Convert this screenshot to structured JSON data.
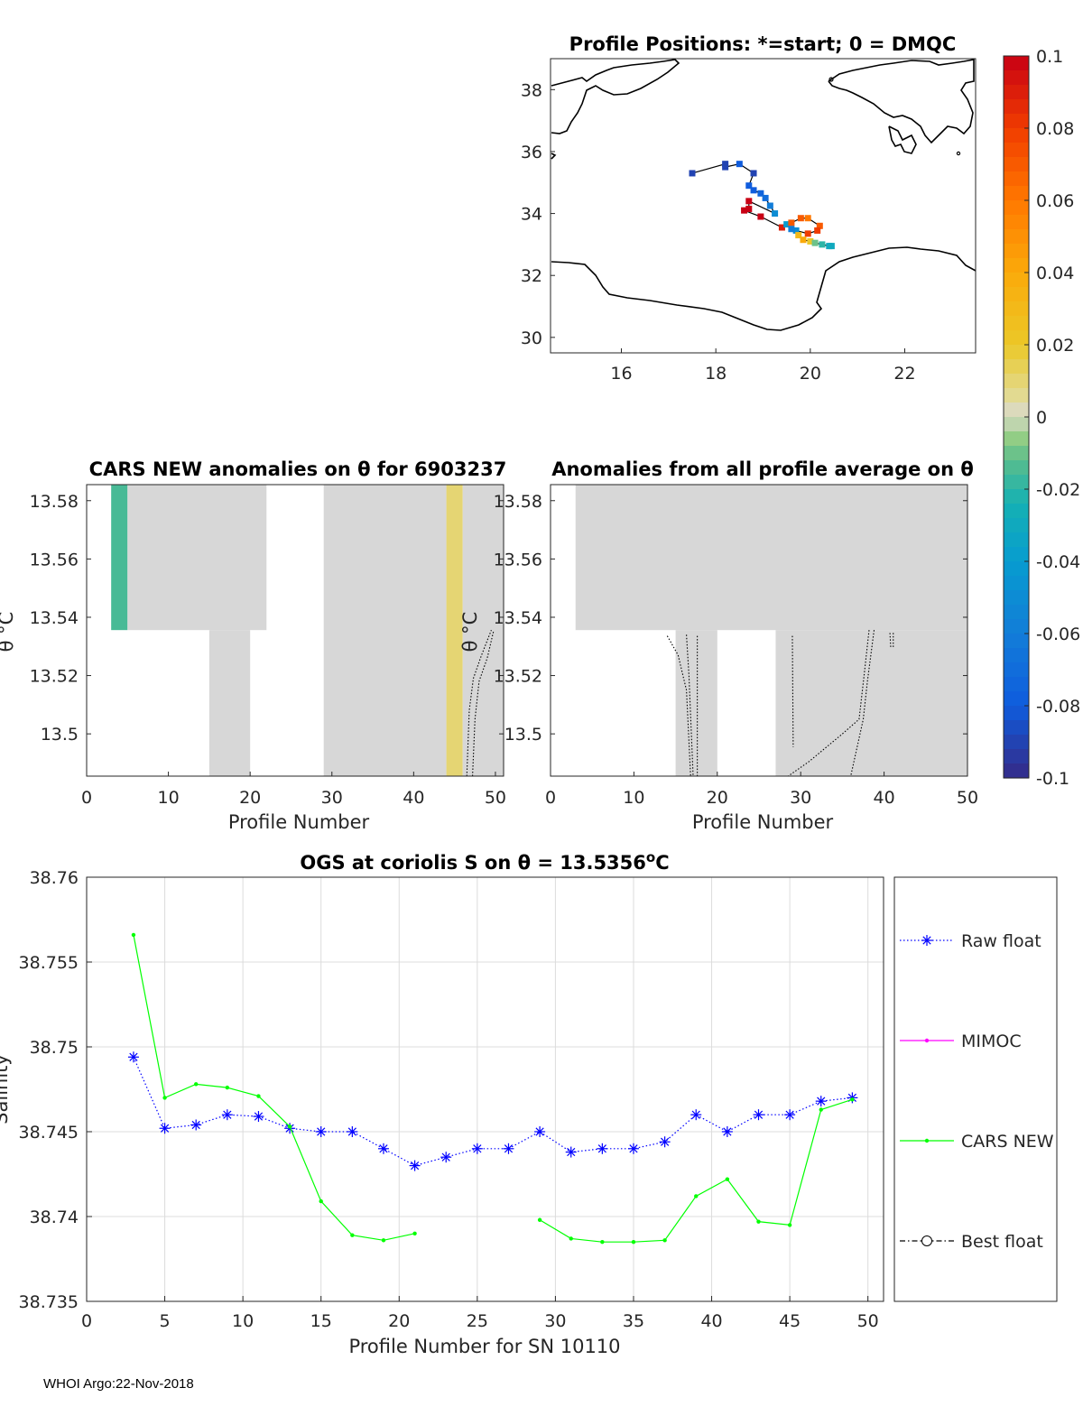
{
  "footer": "WHOI Argo:22-Nov-2018",
  "chart_data": [
    {
      "type": "map",
      "title": "Profile Positions: *=start; 0 = DMQC",
      "xlim": [
        14.5,
        23.5
      ],
      "ylim": [
        29.5,
        39
      ],
      "xticks": [
        "16",
        "18",
        "20",
        "22"
      ],
      "yticks": [
        "30",
        "32",
        "34",
        "36",
        "38"
      ],
      "track": [
        {
          "lon": 17.5,
          "lat": 35.3,
          "v": -0.09
        },
        {
          "lon": 18.2,
          "lat": 35.6,
          "v": -0.09
        },
        {
          "lon": 18.2,
          "lat": 35.5,
          "v": -0.09
        },
        {
          "lon": 18.5,
          "lat": 35.6,
          "v": -0.08
        },
        {
          "lon": 18.8,
          "lat": 35.3,
          "v": -0.09
        },
        {
          "lon": 18.7,
          "lat": 34.9,
          "v": -0.08
        },
        {
          "lon": 18.8,
          "lat": 34.75,
          "v": -0.08
        },
        {
          "lon": 18.95,
          "lat": 34.65,
          "v": -0.075
        },
        {
          "lon": 19.05,
          "lat": 34.5,
          "v": -0.07
        },
        {
          "lon": 19.15,
          "lat": 34.25,
          "v": -0.06
        },
        {
          "lon": 19.25,
          "lat": 34.0,
          "v": -0.05
        },
        {
          "lon": 18.7,
          "lat": 34.4,
          "v": 0.1
        },
        {
          "lon": 18.7,
          "lat": 34.15,
          "v": 0.1
        },
        {
          "lon": 18.6,
          "lat": 34.1,
          "v": 0.1
        },
        {
          "lon": 18.95,
          "lat": 33.9,
          "v": 0.1
        },
        {
          "lon": 19.4,
          "lat": 33.55,
          "v": 0.09
        },
        {
          "lon": 19.5,
          "lat": 33.65,
          "v": -0.04
        },
        {
          "lon": 19.6,
          "lat": 33.7,
          "v": 0.07
        },
        {
          "lon": 19.8,
          "lat": 33.85,
          "v": 0.07
        },
        {
          "lon": 19.95,
          "lat": 33.85,
          "v": 0.06
        },
        {
          "lon": 20.2,
          "lat": 33.6,
          "v": 0.07
        },
        {
          "lon": 20.15,
          "lat": 33.45,
          "v": 0.08
        },
        {
          "lon": 19.95,
          "lat": 33.35,
          "v": 0.08
        },
        {
          "lon": 19.7,
          "lat": 33.45,
          "v": -0.05
        },
        {
          "lon": 19.6,
          "lat": 33.5,
          "v": -0.06
        },
        {
          "lon": 19.75,
          "lat": 33.3,
          "v": 0.03
        },
        {
          "lon": 19.85,
          "lat": 33.15,
          "v": 0.04
        },
        {
          "lon": 20.0,
          "lat": 33.1,
          "v": 0.02
        },
        {
          "lon": 20.1,
          "lat": 33.05,
          "v": -0.01
        },
        {
          "lon": 20.25,
          "lat": 33.0,
          "v": -0.02
        },
        {
          "lon": 20.4,
          "lat": 32.95,
          "v": -0.03
        },
        {
          "lon": 20.45,
          "lat": 32.95,
          "v": -0.03
        }
      ]
    },
    {
      "type": "colorbar",
      "range": [
        -0.1,
        0.1
      ],
      "ticks": [
        "0.1",
        "0.08",
        "0.06",
        "0.04",
        "0.02",
        "0",
        "-0.02",
        "-0.04",
        "-0.06",
        "-0.08",
        "-0.1"
      ]
    },
    {
      "type": "heatmap",
      "title": "CARS NEW anomalies on θ for 6903237",
      "xlabel": "Profile Number",
      "ylabel": "θ °C",
      "xlim": [
        0,
        51
      ],
      "ylim": [
        13.4855,
        13.5855
      ],
      "xticks": [
        "0",
        "10",
        "20",
        "30",
        "40",
        "50"
      ],
      "yticks": [
        "13.5",
        "13.52",
        "13.54",
        "13.56",
        "13.58"
      ],
      "blocks": [
        {
          "x0": 3,
          "x1": 5,
          "y0": 13.5356,
          "y1": 13.5855,
          "v": -0.015
        },
        {
          "x0": 5,
          "x1": 22,
          "y0": 13.5356,
          "y1": 13.5855,
          "v": 0
        },
        {
          "x0": 15,
          "x1": 20,
          "y0": 13.4855,
          "y1": 13.5356,
          "v": 0
        },
        {
          "x0": 29,
          "x1": 44,
          "y0": 13.4855,
          "y1": 13.5855,
          "v": 0
        },
        {
          "x0": 44,
          "x1": 46,
          "y0": 13.4855,
          "y1": 13.5855,
          "v": 0.01
        },
        {
          "x0": 46,
          "x1": 51,
          "y0": 13.4855,
          "y1": 13.5855,
          "v": 0
        }
      ],
      "contours": [
        [
          [
            46.5,
            13.4855
          ],
          [
            46.8,
            13.508
          ],
          [
            47.3,
            13.519
          ],
          [
            48.3,
            13.527
          ],
          [
            49.5,
            13.5356
          ]
        ],
        [
          [
            47.2,
            13.4855
          ],
          [
            47.5,
            13.505
          ],
          [
            48.0,
            13.518
          ],
          [
            49.0,
            13.526
          ],
          [
            49.8,
            13.5356
          ]
        ]
      ]
    },
    {
      "type": "heatmap",
      "title": "Anomalies from all profile average on θ",
      "xlabel": "Profile Number",
      "ylabel": "",
      "xlim": [
        0,
        50
      ],
      "ylim": [
        13.4855,
        13.5855
      ],
      "xticks": [
        "0",
        "10",
        "20",
        "30",
        "40",
        "50"
      ],
      "yticks": [
        "13.5",
        "13.52",
        "13.54",
        "13.56",
        "13.58"
      ],
      "blocks": [
        {
          "x0": 3,
          "x1": 50,
          "y0": 13.5356,
          "y1": 13.5855,
          "v": 0
        },
        {
          "x0": 15,
          "x1": 20,
          "y0": 13.4855,
          "y1": 13.5356,
          "v": 0
        },
        {
          "x0": 27,
          "x1": 50,
          "y0": 13.4855,
          "y1": 13.5356,
          "v": 0
        }
      ],
      "contours": [
        [
          [
            14.0,
            13.5336
          ],
          [
            15.3,
            13.527
          ],
          [
            16.3,
            13.515
          ],
          [
            16.8,
            13.4855
          ]
        ],
        [
          [
            16.3,
            13.534
          ],
          [
            16.6,
            13.52
          ],
          [
            17.1,
            13.4855
          ]
        ],
        [
          [
            17.6,
            13.5336
          ],
          [
            17.6,
            13.4855
          ]
        ],
        [
          [
            29.0,
            13.5336
          ],
          [
            29.1,
            13.4955
          ]
        ],
        [
          [
            38.2,
            13.5356
          ],
          [
            37.6,
            13.52
          ],
          [
            37.0,
            13.505
          ],
          [
            35.0,
            13.5
          ],
          [
            31.0,
            13.4905
          ],
          [
            28.5,
            13.4855
          ]
        ],
        [
          [
            38.8,
            13.5356
          ],
          [
            38.0,
            13.518
          ],
          [
            37.5,
            13.505
          ],
          [
            36.0,
            13.4855
          ]
        ],
        [
          [
            40.7,
            13.5346
          ],
          [
            40.8,
            13.5296
          ]
        ],
        [
          [
            41.1,
            13.5346
          ],
          [
            41.1,
            13.5296
          ]
        ]
      ]
    },
    {
      "type": "line",
      "title": "OGS at coriolis S on θ = 13.5356°C",
      "title_prefix": "OGS at coriolis S on θ = 13.5356",
      "title_sup": "o",
      "title_suffix": "C",
      "xlabel": "Profile Number for SN 10110",
      "ylabel": "Salinity",
      "xlim": [
        0,
        51
      ],
      "ylim": [
        38.735,
        38.76
      ],
      "xticks": [
        "0",
        "5",
        "10",
        "15",
        "20",
        "25",
        "30",
        "35",
        "40",
        "45",
        "50"
      ],
      "yticks": [
        "38.735",
        "38.74",
        "38.745",
        "38.75",
        "38.755",
        "38.76"
      ],
      "grid": true,
      "legend_position": "outside-right",
      "series": [
        {
          "name": "Raw float",
          "color": "#0000ff",
          "style": "dotted-star",
          "x": [
            3,
            5,
            7,
            9,
            11,
            13,
            15,
            17,
            19,
            21,
            23,
            25,
            27,
            29,
            31,
            33,
            35,
            37,
            39,
            41,
            43,
            45,
            47,
            49
          ],
          "y": [
            38.7494,
            38.7452,
            38.7454,
            38.746,
            38.7459,
            38.7452,
            38.745,
            38.745,
            38.744,
            38.743,
            38.7435,
            38.744,
            38.744,
            38.745,
            38.7438,
            38.744,
            38.744,
            38.7444,
            38.746,
            38.745,
            38.746,
            38.746,
            38.7468,
            38.747
          ]
        },
        {
          "name": "MIMOC",
          "color": "#ff00ff",
          "style": "solid-dot",
          "x": [],
          "y": []
        },
        {
          "name": "CARS NEW",
          "color": "#00ff00",
          "style": "solid-dot",
          "x": [
            3,
            5,
            7,
            9,
            11,
            13,
            15,
            17,
            19,
            21,
            null,
            29,
            31,
            33,
            35,
            37,
            39,
            41,
            43,
            45,
            47,
            49
          ],
          "y": [
            38.7566,
            38.747,
            38.7478,
            38.7476,
            38.7471,
            38.7453,
            38.7409,
            38.7389,
            38.7386,
            38.739,
            null,
            38.7398,
            38.7387,
            38.7385,
            38.7385,
            38.7386,
            38.7412,
            38.7422,
            38.7397,
            38.7395,
            38.7463,
            38.7469
          ]
        },
        {
          "name": "Best float",
          "color": "#000000",
          "style": "dashdot-circle",
          "x": [],
          "y": []
        }
      ]
    }
  ]
}
